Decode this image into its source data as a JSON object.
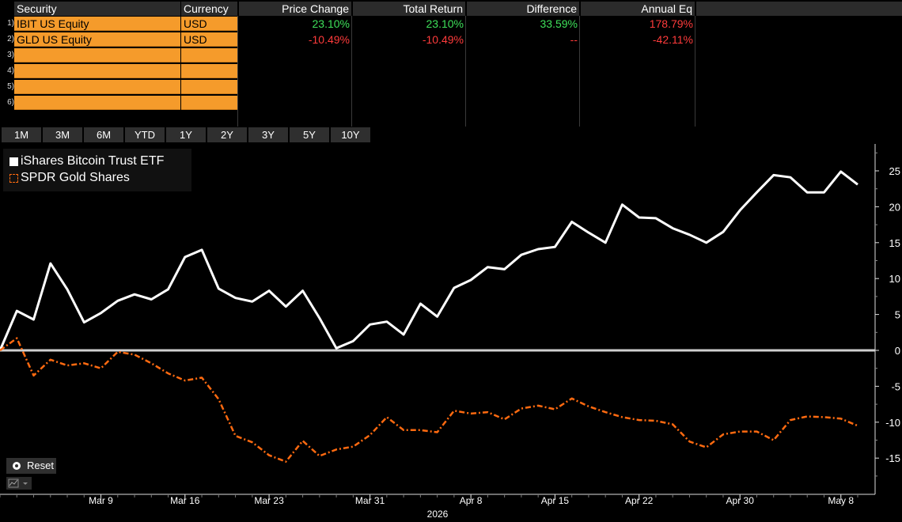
{
  "table": {
    "headers": [
      "Security",
      "Currency",
      "Price Change",
      "Total Return",
      "Difference",
      "Annual Eq"
    ],
    "rows": [
      {
        "num": "1)",
        "security": "IBIT US Equity",
        "currency": "USD",
        "price_change": "23.10%",
        "total_return": "23.10%",
        "difference": "33.59%",
        "annual_eq": "178.79%"
      },
      {
        "num": "2)",
        "security": "GLD US Equity",
        "currency": "USD",
        "price_change": "-10.49%",
        "total_return": "-10.49%",
        "difference": "--",
        "annual_eq": "-42.11%"
      },
      {
        "num": "3)",
        "security": "",
        "currency": ""
      },
      {
        "num": "4)",
        "security": "",
        "currency": ""
      },
      {
        "num": "5)",
        "security": "",
        "currency": ""
      },
      {
        "num": "6)",
        "security": "",
        "currency": ""
      }
    ]
  },
  "periods": [
    "1M",
    "3M",
    "6M",
    "YTD",
    "1Y",
    "2Y",
    "3Y",
    "5Y",
    "10Y"
  ],
  "reset_label": "Reset",
  "colors": {
    "series1": "#ffffff",
    "series2": "#ff6a10",
    "zero_line": "#cfcfcf",
    "orange_cell": "#f59b2b"
  },
  "chart_data": {
    "type": "line",
    "series": [
      {
        "name": "iShares Bitcoin Trust ETF",
        "style": "solid",
        "values": [
          0,
          5.5,
          4.3,
          12.1,
          8.5,
          3.9,
          5.2,
          6.9,
          7.8,
          7.1,
          8.5,
          13.0,
          14.0,
          8.6,
          7.3,
          6.8,
          8.3,
          6.1,
          8.3,
          4.5,
          0.3,
          1.3,
          3.6,
          4.0,
          2.2,
          6.5,
          4.7,
          8.7,
          9.8,
          11.6,
          11.3,
          13.3,
          14.1,
          14.4,
          17.9,
          16.4,
          15.0,
          20.3,
          18.5,
          18.4,
          17.0,
          16.1,
          15.0,
          16.5,
          19.5,
          22.0,
          24.4,
          24.1,
          22.0,
          22.0,
          24.9,
          23.1
        ]
      },
      {
        "name": "SPDR Gold Shares",
        "style": "dashed",
        "values": [
          0,
          1.7,
          -3.5,
          -1.3,
          -2.1,
          -1.8,
          -2.5,
          -0.2,
          -0.6,
          -1.8,
          -3.2,
          -4.2,
          -3.8,
          -6.8,
          -11.9,
          -12.8,
          -14.6,
          -15.5,
          -12.6,
          -14.7,
          -13.8,
          -13.4,
          -11.8,
          -9.3,
          -11.1,
          -11.1,
          -11.4,
          -8.4,
          -8.8,
          -8.6,
          -9.6,
          -8.1,
          -7.7,
          -8.2,
          -6.7,
          -7.8,
          -8.6,
          -9.3,
          -9.7,
          -9.8,
          -10.3,
          -12.7,
          -13.5,
          -11.7,
          -11.3,
          -11.3,
          -12.5,
          -9.7,
          -9.2,
          -9.3,
          -9.5,
          -10.5
        ]
      }
    ],
    "x_ticks": [
      "Mar 9",
      "Mar 16",
      "Mar 23",
      "Mar 31",
      "Apr 8",
      "Apr 15",
      "Apr 22",
      "Apr 30",
      "May 8"
    ],
    "x_tick_index": [
      6,
      11,
      16,
      22,
      28,
      33,
      38,
      44,
      50
    ],
    "year_label": "2026",
    "y_ticks": [
      25,
      20,
      15,
      10,
      5,
      0,
      -5,
      -10,
      -15
    ],
    "ylim": [
      -19.5,
      28.5
    ],
    "grid": false,
    "legend": "top-left"
  }
}
